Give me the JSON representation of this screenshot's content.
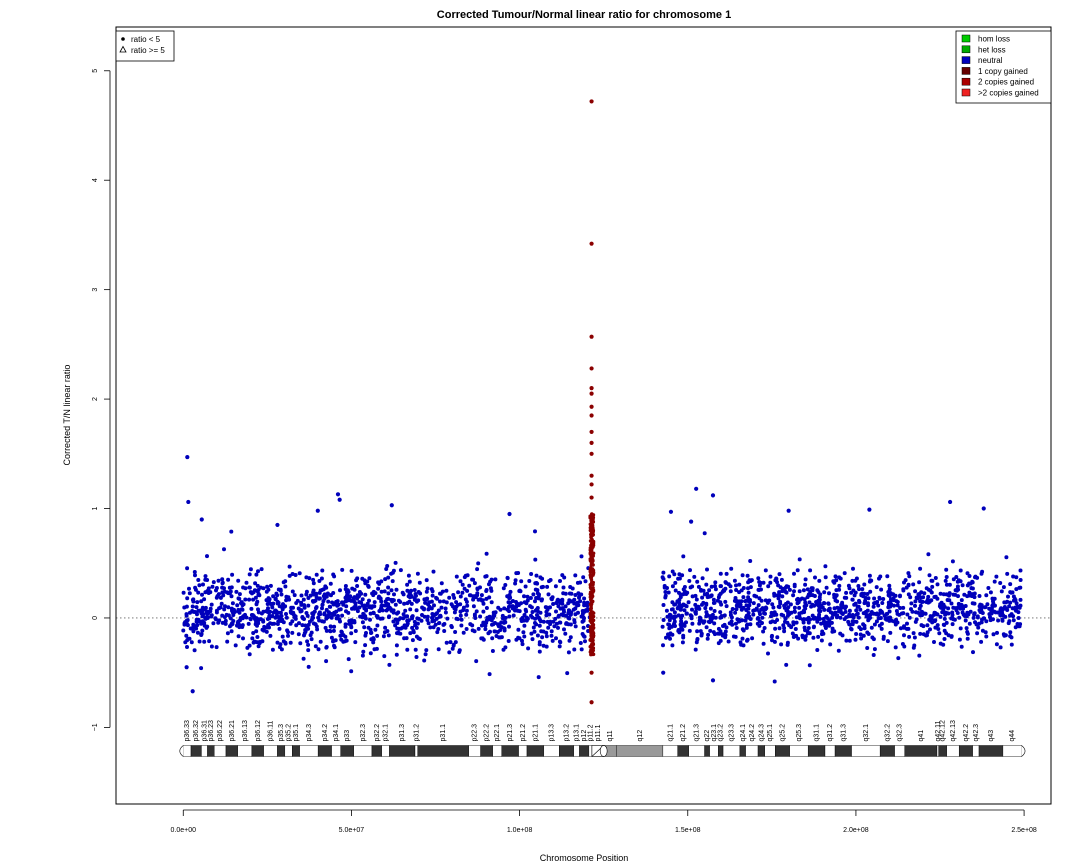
{
  "chart_data": {
    "type": "scatter",
    "title": "Corrected Tumour/Normal linear ratio for chromosome  1",
    "xlabel": "Chromosome Position",
    "ylabel": "Corrected T/N linear ratio",
    "xlim": [
      -20000000,
      258000000
    ],
    "ylim": [
      -1.7,
      5.4
    ],
    "x_ticks": [
      0,
      50000000,
      100000000,
      150000000,
      200000000,
      250000000
    ],
    "x_tick_labels": [
      "0.0e+00",
      "5.0e+07",
      "1.0e+08",
      "1.5e+08",
      "2.0e+08",
      "2.5e+08"
    ],
    "y_ticks": [
      -1,
      0,
      1,
      2,
      3,
      4,
      5
    ],
    "y_tick_labels": [
      "−1",
      "0",
      "1",
      "2",
      "3",
      "4",
      "5"
    ],
    "reference_line_y": 0,
    "legend_shape": [
      {
        "label": "ratio < 5",
        "symbol": "filled-circle"
      },
      {
        "label": "ratio >= 5",
        "symbol": "open-triangle"
      }
    ],
    "legend_color": [
      {
        "label": "hom loss",
        "color": "#00cc00"
      },
      {
        "label": "het loss",
        "color": "#00aa00"
      },
      {
        "label": "neutral",
        "color": "#0000bb"
      },
      {
        "label": "1 copy gained",
        "color": "#660000"
      },
      {
        "label": "2 copies gained",
        "color": "#aa0000"
      },
      {
        "label": ">2 copies gained",
        "color": "#ee2222"
      }
    ],
    "series": [
      {
        "name": "neutral",
        "color": "#0000bb",
        "segments": [
          {
            "x_range": [
              0,
              121500000
            ],
            "y_range": [
              -0.35,
              0.55
            ]
          },
          {
            "x_range": [
              142500000,
              249000000
            ],
            "y_range": [
              -0.3,
              0.55
            ]
          }
        ],
        "outliers": [
          {
            "x": 1200000,
            "y": 1.47
          },
          {
            "x": 1500000,
            "y": 1.06
          },
          {
            "x": 5500000,
            "y": 0.9
          },
          {
            "x": 28000000,
            "y": 0.85
          },
          {
            "x": 40000000,
            "y": 0.98
          },
          {
            "x": 46000000,
            "y": 1.13
          },
          {
            "x": 46500000,
            "y": 1.08
          },
          {
            "x": 62000000,
            "y": 1.03
          },
          {
            "x": 97000000,
            "y": 0.95
          },
          {
            "x": 145000000,
            "y": 0.97
          },
          {
            "x": 151000000,
            "y": 0.88
          },
          {
            "x": 152500000,
            "y": 1.18
          },
          {
            "x": 157500000,
            "y": 1.12
          },
          {
            "x": 180000000,
            "y": 0.98
          },
          {
            "x": 204000000,
            "y": 0.99
          },
          {
            "x": 228000000,
            "y": 1.06
          },
          {
            "x": 238000000,
            "y": 1.0
          },
          {
            "x": 2800000,
            "y": -0.67
          },
          {
            "x": 157500000,
            "y": -0.57
          },
          {
            "x": 1000000,
            "y": -0.45
          },
          {
            "x": 142700000,
            "y": -0.5
          }
        ]
      },
      {
        "name": "gained",
        "color": "#8b0000",
        "x_range": [
          121000000,
          122000000
        ],
        "points": [
          {
            "x": 121400000,
            "y": 4.72
          },
          {
            "x": 121400000,
            "y": 3.42
          },
          {
            "x": 121400000,
            "y": 2.57
          },
          {
            "x": 121400000,
            "y": 2.28
          },
          {
            "x": 121400000,
            "y": 2.1
          },
          {
            "x": 121400000,
            "y": 2.05
          },
          {
            "x": 121400000,
            "y": 1.93
          },
          {
            "x": 121400000,
            "y": 1.85
          },
          {
            "x": 121400000,
            "y": 1.7
          },
          {
            "x": 121400000,
            "y": 1.6
          },
          {
            "x": 121400000,
            "y": 1.5
          },
          {
            "x": 121400000,
            "y": 1.3
          },
          {
            "x": 121400000,
            "y": 1.22
          },
          {
            "x": 121400000,
            "y": 1.1
          },
          {
            "x": 121400000,
            "y": -0.5
          },
          {
            "x": 121400000,
            "y": -0.77
          }
        ]
      }
    ],
    "ideogram": {
      "bands": [
        {
          "name": "p36.33",
          "start": 0,
          "end": 2300000,
          "stain": "gneg"
        },
        {
          "name": "p36.32",
          "start": 2300000,
          "end": 5400000,
          "stain": "gpos25"
        },
        {
          "name": "p36.31",
          "start": 5400000,
          "end": 7200000,
          "stain": "gneg"
        },
        {
          "name": "p36.23",
          "start": 7200000,
          "end": 9200000,
          "stain": "gpos25"
        },
        {
          "name": "p36.22",
          "start": 9200000,
          "end": 12700000,
          "stain": "gneg"
        },
        {
          "name": "p36.21",
          "start": 12700000,
          "end": 16200000,
          "stain": "gpos50"
        },
        {
          "name": "p36.13",
          "start": 16200000,
          "end": 20400000,
          "stain": "gneg"
        },
        {
          "name": "p36.12",
          "start": 20400000,
          "end": 23900000,
          "stain": "gpos25"
        },
        {
          "name": "p36.11",
          "start": 23900000,
          "end": 28000000,
          "stain": "gneg"
        },
        {
          "name": "p35.3",
          "start": 28000000,
          "end": 30200000,
          "stain": "gpos25"
        },
        {
          "name": "p35.2",
          "start": 30200000,
          "end": 32400000,
          "stain": "gneg"
        },
        {
          "name": "p35.1",
          "start": 32400000,
          "end": 34600000,
          "stain": "gpos25"
        },
        {
          "name": "p34.3",
          "start": 34600000,
          "end": 40100000,
          "stain": "gneg"
        },
        {
          "name": "p34.2",
          "start": 40100000,
          "end": 44100000,
          "stain": "gpos25"
        },
        {
          "name": "p34.1",
          "start": 44100000,
          "end": 46800000,
          "stain": "gneg"
        },
        {
          "name": "p33",
          "start": 46800000,
          "end": 50700000,
          "stain": "gpos75"
        },
        {
          "name": "p32.3",
          "start": 50700000,
          "end": 56100000,
          "stain": "gneg"
        },
        {
          "name": "p32.2",
          "start": 56100000,
          "end": 59000000,
          "stain": "gpos50"
        },
        {
          "name": "p32.1",
          "start": 59000000,
          "end": 61300000,
          "stain": "gneg"
        },
        {
          "name": "p31.3",
          "start": 61300000,
          "end": 68900000,
          "stain": "gpos50"
        },
        {
          "name": "p31.2",
          "start": 68900000,
          "end": 69700000,
          "stain": "gneg"
        },
        {
          "name": "p31.1",
          "start": 69700000,
          "end": 84900000,
          "stain": "gpos100"
        },
        {
          "name": "p22.3",
          "start": 84900000,
          "end": 88400000,
          "stain": "gneg"
        },
        {
          "name": "p22.2",
          "start": 88400000,
          "end": 92000000,
          "stain": "gpos75"
        },
        {
          "name": "p22.1",
          "start": 92000000,
          "end": 94700000,
          "stain": "gneg"
        },
        {
          "name": "p21.3",
          "start": 94700000,
          "end": 99700000,
          "stain": "gpos75"
        },
        {
          "name": "p21.2",
          "start": 99700000,
          "end": 102200000,
          "stain": "gneg"
        },
        {
          "name": "p21.1",
          "start": 102200000,
          "end": 107200000,
          "stain": "gpos100"
        },
        {
          "name": "p13.3",
          "start": 107200000,
          "end": 111800000,
          "stain": "gneg"
        },
        {
          "name": "p13.2",
          "start": 111800000,
          "end": 116100000,
          "stain": "gpos50"
        },
        {
          "name": "p13.1",
          "start": 116100000,
          "end": 117800000,
          "stain": "gneg"
        },
        {
          "name": "p12",
          "start": 117800000,
          "end": 120600000,
          "stain": "gpos50"
        },
        {
          "name": "p11.2",
          "start": 120600000,
          "end": 121500000,
          "stain": "gneg"
        },
        {
          "name": "p11.1",
          "start": 121500000,
          "end": 125000000,
          "stain": "acen"
        },
        {
          "name": "q11",
          "start": 125000000,
          "end": 128900000,
          "stain": "gvar"
        },
        {
          "name": "q12",
          "start": 128900000,
          "end": 142600000,
          "stain": "gvar"
        },
        {
          "name": "q21.1",
          "start": 142600000,
          "end": 147000000,
          "stain": "gneg"
        },
        {
          "name": "q21.2",
          "start": 147000000,
          "end": 150300000,
          "stain": "gpos50"
        },
        {
          "name": "q21.3",
          "start": 150300000,
          "end": 155000000,
          "stain": "gneg"
        },
        {
          "name": "q22",
          "start": 155000000,
          "end": 156500000,
          "stain": "gpos50"
        },
        {
          "name": "q23.1",
          "start": 156500000,
          "end": 159100000,
          "stain": "gneg"
        },
        {
          "name": "q23.2",
          "start": 159100000,
          "end": 160500000,
          "stain": "gpos50"
        },
        {
          "name": "q23.3",
          "start": 160500000,
          "end": 165500000,
          "stain": "gneg"
        },
        {
          "name": "q24.1",
          "start": 165500000,
          "end": 167200000,
          "stain": "gpos50"
        },
        {
          "name": "q24.2",
          "start": 167200000,
          "end": 170900000,
          "stain": "gneg"
        },
        {
          "name": "q24.3",
          "start": 170900000,
          "end": 172900000,
          "stain": "gpos75"
        },
        {
          "name": "q25.1",
          "start": 172900000,
          "end": 176000000,
          "stain": "gneg"
        },
        {
          "name": "q25.2",
          "start": 176000000,
          "end": 180300000,
          "stain": "gpos50"
        },
        {
          "name": "q25.3",
          "start": 180300000,
          "end": 185800000,
          "stain": "gneg"
        },
        {
          "name": "q31.1",
          "start": 185800000,
          "end": 190800000,
          "stain": "gpos100"
        },
        {
          "name": "q31.2",
          "start": 190800000,
          "end": 193800000,
          "stain": "gneg"
        },
        {
          "name": "q31.3",
          "start": 193800000,
          "end": 198700000,
          "stain": "gpos100"
        },
        {
          "name": "q32.1",
          "start": 198700000,
          "end": 207200000,
          "stain": "gneg"
        },
        {
          "name": "q32.2",
          "start": 207200000,
          "end": 211500000,
          "stain": "gpos25"
        },
        {
          "name": "q32.3",
          "start": 211500000,
          "end": 214500000,
          "stain": "gneg"
        },
        {
          "name": "q41",
          "start": 214500000,
          "end": 224100000,
          "stain": "gpos100"
        },
        {
          "name": "q42.11",
          "start": 224100000,
          "end": 224600000,
          "stain": "gneg"
        },
        {
          "name": "q42.12",
          "start": 224600000,
          "end": 227000000,
          "stain": "gpos25"
        },
        {
          "name": "q42.13",
          "start": 227000000,
          "end": 230700000,
          "stain": "gneg"
        },
        {
          "name": "q42.2",
          "start": 230700000,
          "end": 234700000,
          "stain": "gpos50"
        },
        {
          "name": "q42.3",
          "start": 234700000,
          "end": 236600000,
          "stain": "gneg"
        },
        {
          "name": "q43",
          "start": 236600000,
          "end": 243700000,
          "stain": "gpos75"
        },
        {
          "name": "q44",
          "start": 243700000,
          "end": 249250621,
          "stain": "gneg"
        }
      ]
    }
  }
}
